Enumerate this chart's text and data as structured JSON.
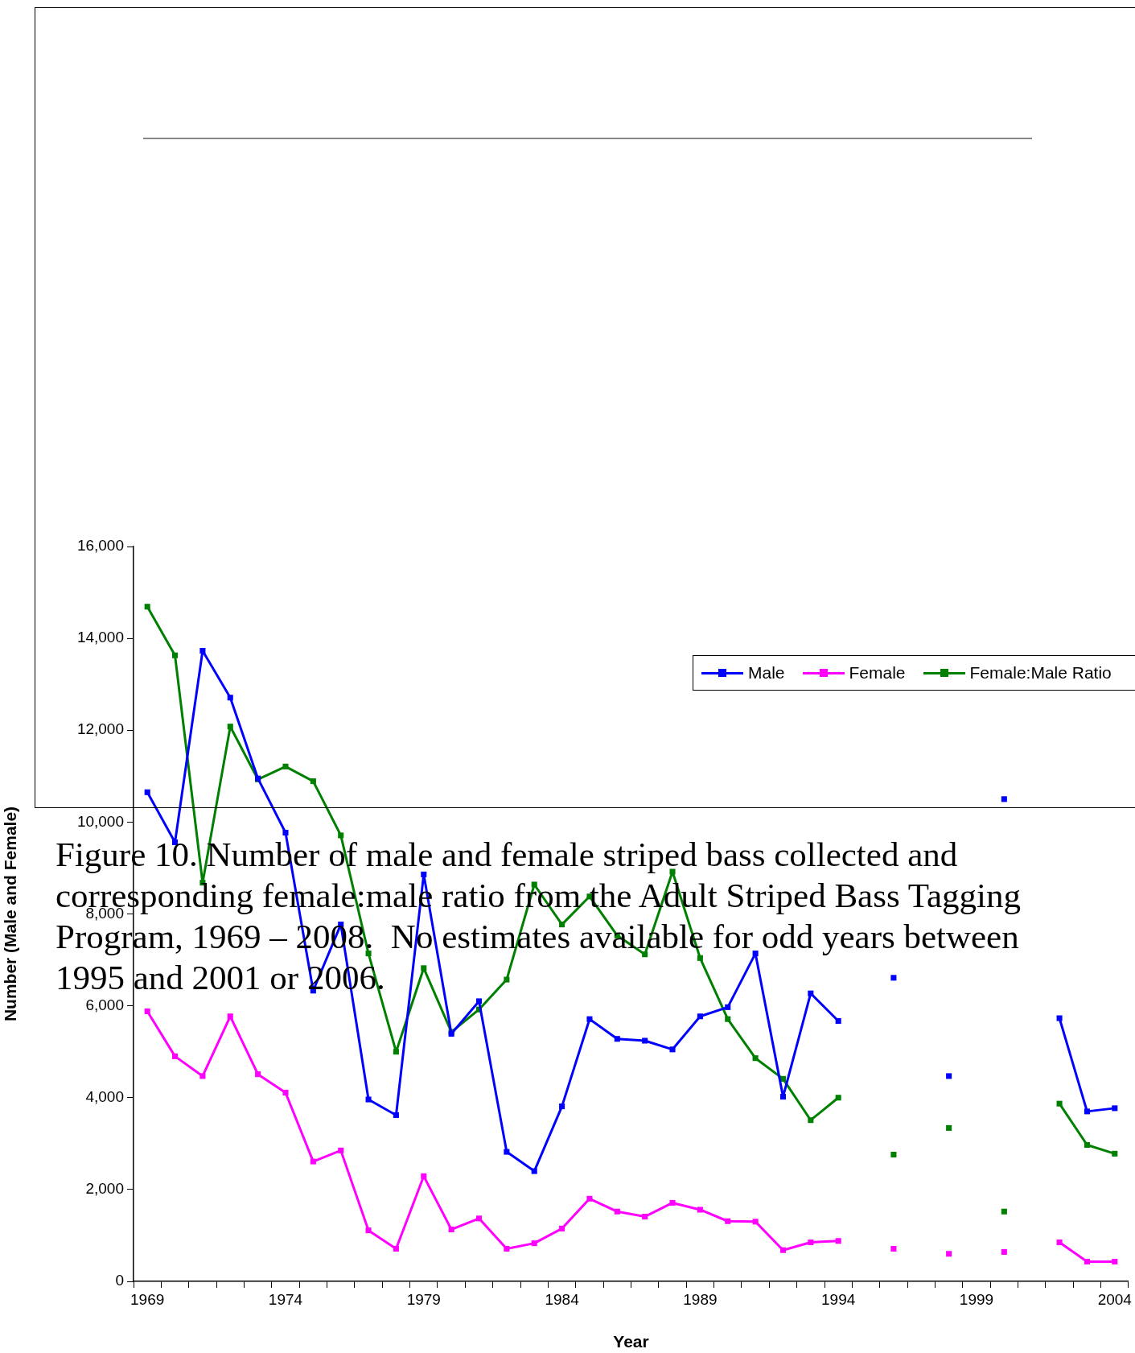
{
  "chart_data": {
    "type": "line",
    "xlabel": "Year",
    "ylabel": "Number (Male and Female)",
    "annotations": [
      "Figure 10. Number of male and female striped bass collected and corresponding female:male ratio from the Adult Striped Bass Tagging Program, 1969 – 2008.  No estimates available for odd years between 1995 and 2001 or 2006."
    ],
    "categories": [
      "1969",
      null,
      null,
      null,
      null,
      "1974",
      null,
      null,
      null,
      null,
      "1979",
      null,
      null,
      null,
      null,
      "1984",
      null,
      null,
      null,
      null,
      "1989",
      null,
      null,
      null,
      null,
      "1994",
      null,
      null,
      null,
      null,
      "1999",
      null,
      null,
      null,
      null,
      "2004"
    ],
    "series": [
      {
        "name": "Male",
        "color": "#0000ff",
        "values": [
          10650,
          9560,
          13730,
          12710,
          10950,
          9770,
          6330,
          7770,
          3960,
          3620,
          8860,
          5390,
          6100,
          2820,
          2400,
          3810,
          5710,
          5280,
          5240,
          5050,
          5770,
          5970,
          7140,
          4020,
          6270,
          5670,
          null,
          6610,
          null,
          4470,
          null,
          10500,
          null,
          5730,
          3700,
          3770
        ]
      },
      {
        "name": "Female",
        "color": "#ff00ff",
        "values": [
          5880,
          4900,
          4470,
          5770,
          4510,
          4110,
          2610,
          2850,
          1110,
          710,
          2290,
          1130,
          1370,
          710,
          830,
          1150,
          1800,
          1520,
          1410,
          1710,
          1560,
          1310,
          1300,
          680,
          850,
          880,
          null,
          710,
          null,
          600,
          null,
          640,
          null,
          850,
          430,
          430
        ]
      },
      {
        "name": "Female:Male Ratio",
        "color": "#008000",
        "values": [
          14690,
          13630,
          8680,
          12080,
          10930,
          11210,
          10890,
          9710,
          7140,
          5000,
          6820,
          5430,
          5920,
          6570,
          8640,
          7770,
          8380,
          7530,
          7120,
          8920,
          7040,
          5710,
          4860,
          4410,
          3510,
          4000,
          null,
          2760,
          null,
          3340,
          null,
          1520,
          null,
          3870,
          2970,
          2780
        ]
      }
    ],
    "ylim": [
      0,
      16000
    ],
    "yticks": [
      {
        "value": 0,
        "label": "0"
      },
      {
        "value": 2000,
        "label": "2,000"
      },
      {
        "value": 4000,
        "label": "4,000"
      },
      {
        "value": 6000,
        "label": "6,000"
      },
      {
        "value": 8000,
        "label": "8,000"
      },
      {
        "value": 10000,
        "label": "10,000"
      },
      {
        "value": 12000,
        "label": "12,000"
      },
      {
        "value": 14000,
        "label": "14,000"
      },
      {
        "value": 16000,
        "label": "16,000"
      }
    ],
    "legend": "top right",
    "marker": "square",
    "line_style": "solid"
  }
}
